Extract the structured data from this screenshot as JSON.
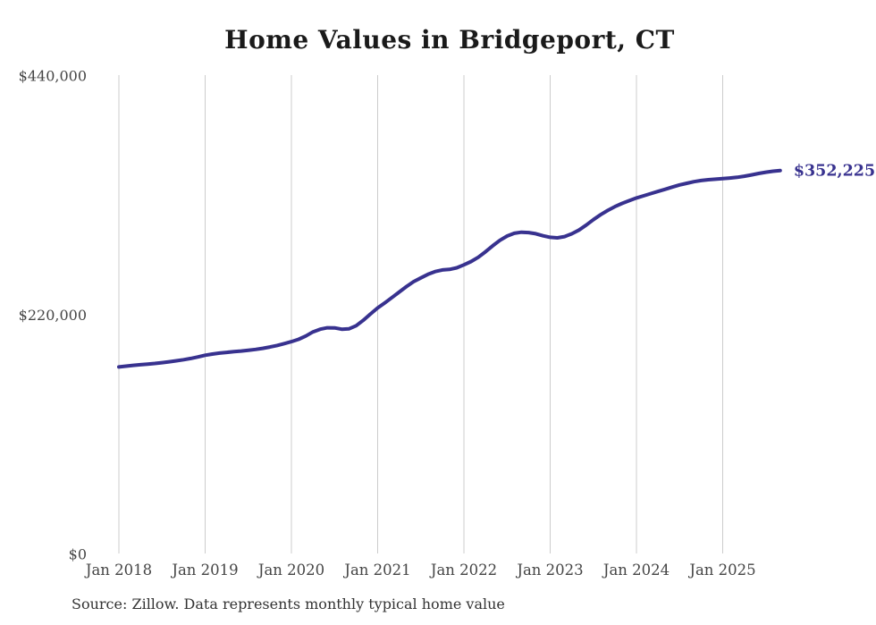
{
  "colors": {
    "line": "#38328f",
    "end_label": "#38328f",
    "grid": "#cccccc",
    "title_text": "#1a1a1a",
    "axis_text": "#454545",
    "source_text": "#333333",
    "background": "#ffffff"
  },
  "chart_data": {
    "type": "line",
    "title": "Home Values in Bridgeport, CT",
    "series_name": "Monthly typical home value",
    "source": "Source: Zillow. Data represents monthly typical home value",
    "end_label": "$352,225",
    "end_value": 352225,
    "grid": "vertical-only",
    "legend": "none",
    "ylim": [
      0,
      440000
    ],
    "y_ticks": [
      {
        "label": "$440,000",
        "value": 440000
      },
      {
        "label": "$220,000",
        "value": 220000
      },
      {
        "label": "$0",
        "value": 0
      }
    ],
    "x_tick_labels": [
      "Jan 2018",
      "Jan 2019",
      "Jan 2020",
      "Jan 2021",
      "Jan 2022",
      "Jan 2023",
      "Jan 2024",
      "Jan 2025"
    ],
    "months": [
      "2018-01",
      "2018-02",
      "2018-03",
      "2018-04",
      "2018-05",
      "2018-06",
      "2018-07",
      "2018-08",
      "2018-09",
      "2018-10",
      "2018-11",
      "2018-12",
      "2019-01",
      "2019-02",
      "2019-03",
      "2019-04",
      "2019-05",
      "2019-06",
      "2019-07",
      "2019-08",
      "2019-09",
      "2019-10",
      "2019-11",
      "2019-12",
      "2020-01",
      "2020-02",
      "2020-03",
      "2020-04",
      "2020-05",
      "2020-06",
      "2020-07",
      "2020-08",
      "2020-09",
      "2020-10",
      "2020-11",
      "2020-12",
      "2021-01",
      "2021-02",
      "2021-03",
      "2021-04",
      "2021-05",
      "2021-06",
      "2021-07",
      "2021-08",
      "2021-09",
      "2021-10",
      "2021-11",
      "2021-12",
      "2022-01",
      "2022-02",
      "2022-03",
      "2022-04",
      "2022-05",
      "2022-06",
      "2022-07",
      "2022-08",
      "2022-09",
      "2022-10",
      "2022-11",
      "2022-12",
      "2023-01",
      "2023-02",
      "2023-03",
      "2023-04",
      "2023-05",
      "2023-06",
      "2023-07",
      "2023-08",
      "2023-09",
      "2023-10",
      "2023-11",
      "2023-12",
      "2024-01",
      "2024-02",
      "2024-03",
      "2024-04",
      "2024-05",
      "2024-06",
      "2024-07",
      "2024-08",
      "2024-09",
      "2024-10",
      "2024-11",
      "2024-12",
      "2025-01",
      "2025-02",
      "2025-03",
      "2025-04",
      "2025-05",
      "2025-06",
      "2025-07",
      "2025-08",
      "2025-09"
    ],
    "values": [
      171600,
      172300,
      173000,
      173600,
      174200,
      174800,
      175500,
      176300,
      177200,
      178200,
      179400,
      180800,
      182300,
      183400,
      184300,
      185000,
      185600,
      186200,
      186900,
      187700,
      188700,
      189900,
      191300,
      193000,
      194800,
      197000,
      200000,
      203800,
      206300,
      207600,
      207500,
      206300,
      206600,
      209500,
      214500,
      220300,
      225800,
      230500,
      235500,
      240500,
      245500,
      250000,
      253500,
      256800,
      259300,
      260800,
      261300,
      262800,
      265500,
      268500,
      272500,
      277500,
      283000,
      288000,
      292000,
      294500,
      295500,
      295200,
      294100,
      292200,
      290800,
      290300,
      291500,
      294000,
      297500,
      302000,
      307000,
      311500,
      315500,
      319000,
      322000,
      324500,
      327000,
      329000,
      331000,
      333000,
      335000,
      337000,
      339000,
      340500,
      342000,
      343000,
      343800,
      344300,
      344800,
      345300,
      346000,
      347000,
      348200,
      349500,
      350700,
      351600,
      352225
    ]
  }
}
